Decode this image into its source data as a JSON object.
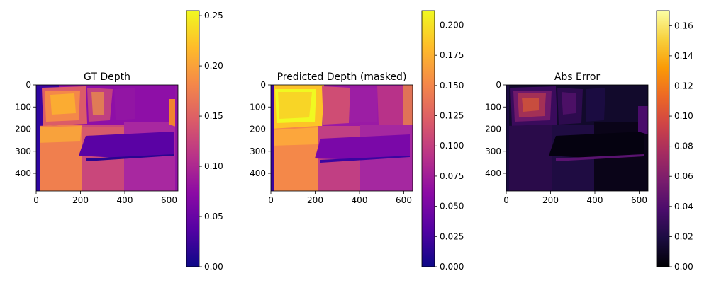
{
  "chart_data": [
    {
      "type": "heatmap",
      "title": "GT Depth",
      "x_ticks": [
        "0",
        "200",
        "400",
        "600"
      ],
      "x_tick_values": [
        0,
        200,
        400,
        600
      ],
      "y_ticks": [
        "0",
        "100",
        "200",
        "300",
        "400"
      ],
      "y_tick_values": [
        0,
        100,
        200,
        300,
        400
      ],
      "xlim": [
        0,
        640
      ],
      "ylim": [
        480,
        0
      ],
      "image_size": [
        640,
        480
      ],
      "colormap": "plasma",
      "colorbar": {
        "range": [
          0.0,
          0.255
        ],
        "ticks": [
          "0.00",
          "0.05",
          "0.10",
          "0.15",
          "0.20",
          "0.25"
        ],
        "tick_values": [
          0.0,
          0.05,
          0.1,
          0.15,
          0.2,
          0.25
        ]
      }
    },
    {
      "type": "heatmap",
      "title": "Predicted Depth (masked)",
      "x_ticks": [
        "0",
        "200",
        "400",
        "600"
      ],
      "x_tick_values": [
        0,
        200,
        400,
        600
      ],
      "y_ticks": [
        "0",
        "100",
        "200",
        "300",
        "400"
      ],
      "y_tick_values": [
        0,
        100,
        200,
        300,
        400
      ],
      "xlim": [
        0,
        640
      ],
      "ylim": [
        480,
        0
      ],
      "image_size": [
        640,
        480
      ],
      "colormap": "plasma",
      "colorbar": {
        "range": [
          0.0,
          0.212
        ],
        "ticks": [
          "0.000",
          "0.025",
          "0.050",
          "0.075",
          "0.100",
          "0.125",
          "0.150",
          "0.175",
          "0.200"
        ],
        "tick_values": [
          0.0,
          0.025,
          0.05,
          0.075,
          0.1,
          0.125,
          0.15,
          0.175,
          0.2
        ]
      }
    },
    {
      "type": "heatmap",
      "title": "Abs Error",
      "x_ticks": [
        "0",
        "200",
        "400",
        "600"
      ],
      "x_tick_values": [
        0,
        200,
        400,
        600
      ],
      "y_ticks": [
        "0",
        "100",
        "200",
        "300",
        "400"
      ],
      "y_tick_values": [
        0,
        100,
        200,
        300,
        400
      ],
      "xlim": [
        0,
        640
      ],
      "ylim": [
        480,
        0
      ],
      "image_size": [
        640,
        480
      ],
      "colormap": "inferno",
      "colorbar": {
        "range": [
          0.0,
          0.17
        ],
        "ticks": [
          "0.00",
          "0.02",
          "0.04",
          "0.06",
          "0.08",
          "0.10",
          "0.12",
          "0.14",
          "0.16"
        ],
        "tick_values": [
          0.0,
          0.02,
          0.04,
          0.06,
          0.08,
          0.1,
          0.12,
          0.14,
          0.16
        ]
      }
    }
  ],
  "colors": {
    "plasma": [
      "#0d0887",
      "#5302a3",
      "#8b0aa5",
      "#b83289",
      "#db5c68",
      "#f48849",
      "#febc2a",
      "#f0f921"
    ],
    "inferno": [
      "#000004",
      "#1b0c41",
      "#4a0c6b",
      "#781c6d",
      "#a52c60",
      "#cf4446",
      "#ed6925",
      "#fb9b06",
      "#f7d13d",
      "#fcffa4"
    ]
  }
}
